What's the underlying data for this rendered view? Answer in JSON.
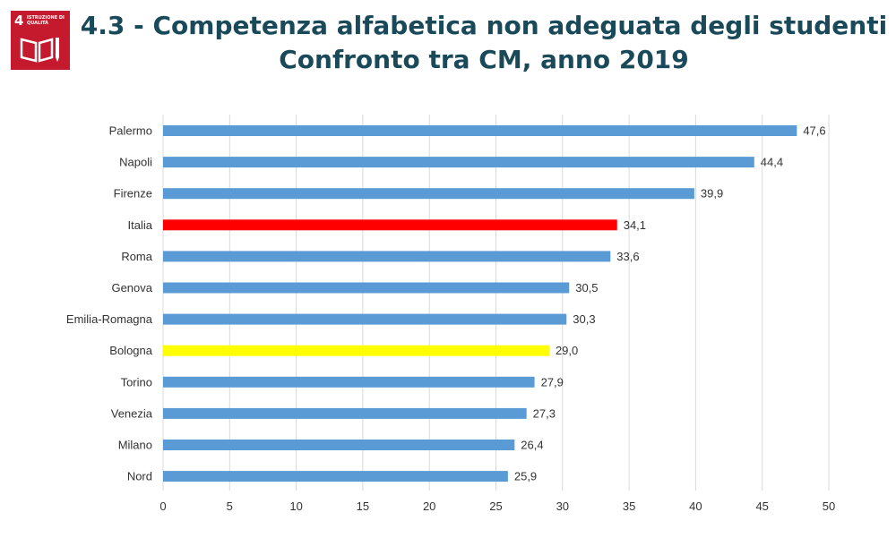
{
  "logo": {
    "number": "4",
    "text": "ISTRUZIONE DI QUALITÀ",
    "color": "#c5192d"
  },
  "header": {
    "title_line1": "4.3 - Competenza alfabetica non adeguata degli studenti",
    "title_line2": "Confronto tra CM, anno 2019"
  },
  "chart_data": {
    "type": "bar",
    "orientation": "horizontal",
    "categories": [
      "Palermo",
      "Napoli",
      "Firenze",
      "Italia",
      "Roma",
      "Genova",
      "Emilia-Romagna",
      "Bologna",
      "Torino",
      "Venezia",
      "Milano",
      "Nord"
    ],
    "values": [
      47.6,
      44.4,
      39.9,
      34.1,
      33.6,
      30.5,
      30.3,
      29.0,
      27.9,
      27.3,
      26.4,
      25.9
    ],
    "value_labels": [
      "47,6",
      "44,4",
      "39,9",
      "34,1",
      "33,6",
      "30,5",
      "30,3",
      "29,0",
      "27,9",
      "27,3",
      "26,4",
      "25,9"
    ],
    "colors": [
      "#5b9bd5",
      "#5b9bd5",
      "#5b9bd5",
      "#ff0000",
      "#5b9bd5",
      "#5b9bd5",
      "#5b9bd5",
      "#ffff00",
      "#5b9bd5",
      "#5b9bd5",
      "#5b9bd5",
      "#5b9bd5"
    ],
    "xlim": [
      0,
      50
    ],
    "xticks": [
      0,
      5,
      10,
      15,
      20,
      25,
      30,
      35,
      40,
      45,
      50
    ],
    "grid": true,
    "title": "4.3 - Competenza alfabetica non adeguata degli studenti",
    "xlabel": "",
    "ylabel": ""
  }
}
